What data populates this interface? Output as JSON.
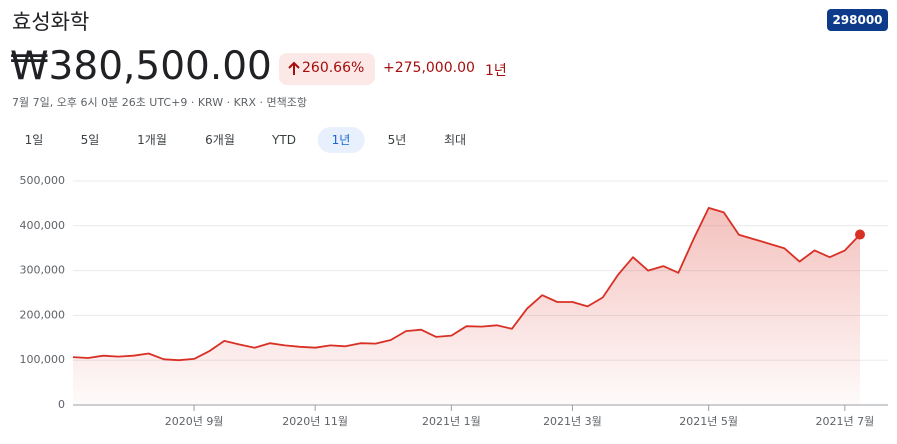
{
  "header": {
    "title": "효성화학",
    "ticker": "298000",
    "price": "₩380,500.00",
    "change_pct": "260.66%",
    "change_abs": "+275,000.00",
    "period": "1년",
    "info": "7월 7일, 오후 6시 0분 26초 UTC+9 · KRW · KRX · 면책조항"
  },
  "tabs": {
    "items": [
      "1일",
      "5일",
      "1개월",
      "6개월",
      "YTD",
      "1년",
      "5년",
      "최대"
    ],
    "selected": 5
  },
  "chart_data": {
    "type": "line",
    "categories": [
      null,
      null,
      null,
      null,
      null,
      null,
      null,
      null,
      "2020년 9월",
      null,
      null,
      null,
      null,
      null,
      null,
      null,
      "2020년 11월",
      null,
      null,
      null,
      null,
      null,
      null,
      null,
      null,
      "2021년 1월",
      null,
      null,
      null,
      null,
      null,
      null,
      null,
      "2021년 3월",
      null,
      null,
      null,
      null,
      null,
      null,
      null,
      null,
      "2021년 5월",
      null,
      null,
      null,
      null,
      null,
      null,
      null,
      null,
      "2021년 7월",
      null
    ],
    "series": [
      {
        "color": "#d93025",
        "values": [
          107000,
          105000,
          110000,
          108000,
          110000,
          115000,
          102000,
          100000,
          103000,
          120000,
          143000,
          135000,
          128000,
          138000,
          133000,
          130000,
          128000,
          133000,
          131000,
          138000,
          137000,
          145000,
          165000,
          168000,
          152000,
          155000,
          176000,
          175000,
          178000,
          170000,
          215000,
          245000,
          230000,
          230000,
          220000,
          240000,
          290000,
          330000,
          300000,
          310000,
          295000,
          370000,
          440000,
          430000,
          380000,
          370000,
          360000,
          350000,
          320000,
          345000,
          330000,
          345000,
          380500
        ]
      }
    ],
    "ylim": [
      0,
      500000
    ],
    "yticks": [
      0,
      {
        "value": 100000,
        "label": "100,000"
      },
      {
        "value": 200000,
        "label": "200,000"
      },
      {
        "value": 300000,
        "label": "300,000"
      },
      {
        "value": 400000,
        "label": "400,000"
      },
      {
        "value": 500000,
        "label": "500,000"
      }
    ],
    "grid": true
  }
}
